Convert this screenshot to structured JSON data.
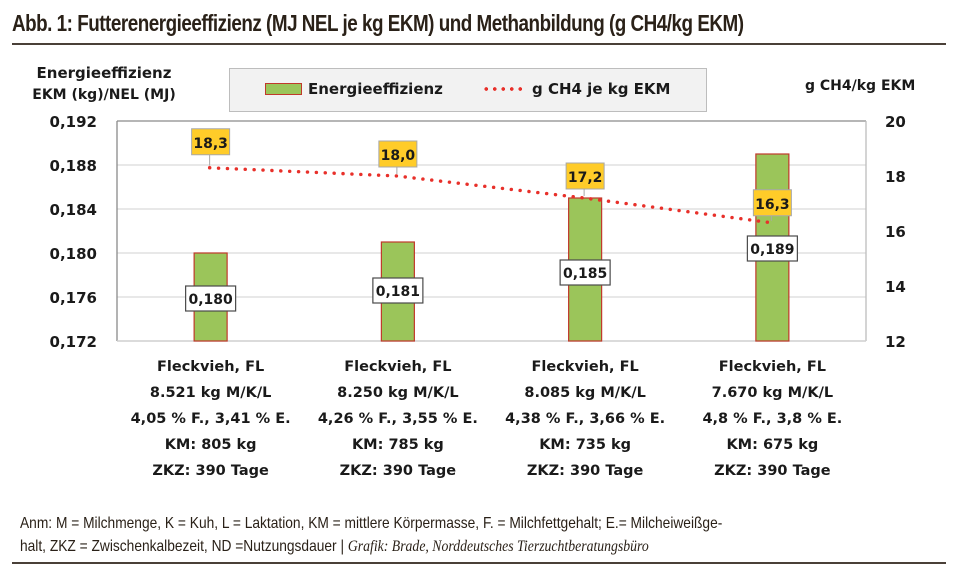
{
  "figure": {
    "title": "Abb. 1: Futterenergieeffizienz (MJ NEL je kg EKM) und Methanbildung (g CH4/kg EKM)",
    "note_line1": "Anm: M = Milchmenge, K = Kuh, L = Laktation, KM = mittlere Körpermasse, F. = Milchfettgehalt; E.= Milcheiweißge-",
    "note_line2": "halt, ZKZ = Zwischenkalbezeit, ND =Nutzungsdauer",
    "note_separator": " | ",
    "credit": "Grafik: Brade, Norddeutsches Tierzuchtberatungsbüro"
  },
  "chart_data": {
    "type": "bar",
    "title": "Abb. 1: Futterenergieeffizienz (MJ NEL je kg EKM) und Methanbildung (g CH4/kg EKM)",
    "ylabel_left_line1": "Energieeffizienz",
    "ylabel_left_line2": "EKM (kg)/NEL (MJ)",
    "ylabel_right": "g CH4/kg EKM",
    "ylim_left": [
      0.172,
      0.192
    ],
    "ylim_right": [
      12,
      20
    ],
    "yticks_left": [
      "0,192",
      "0,188",
      "0,184",
      "0,180",
      "0,176",
      "0,172"
    ],
    "yticks_left_values": [
      0.192,
      0.188,
      0.184,
      0.18,
      0.176,
      0.172
    ],
    "yticks_right": [
      "20",
      "18",
      "16",
      "14",
      "12"
    ],
    "yticks_right_values": [
      20,
      18,
      16,
      14,
      12
    ],
    "grid": true,
    "legend_position": "top-center",
    "legend": [
      {
        "label": "Energieeffizienz",
        "kind": "bar"
      },
      {
        "label": "g CH4 je kg EKM",
        "kind": "dotted-line"
      }
    ],
    "categories": [
      [
        "Fleckvieh, FL",
        "8.521 kg M/K/L",
        "4,05 % F., 3,41 % E.",
        "KM: 805 kg",
        "ZKZ: 390 Tage"
      ],
      [
        "Fleckvieh, FL",
        "8.250 kg M/K/L",
        "4,26 % F., 3,55 % E.",
        "KM: 785 kg",
        "ZKZ: 390 Tage"
      ],
      [
        "Fleckvieh, FL",
        "8.085 kg M/K/L",
        "4,38 % F., 3,66 % E.",
        "KM: 735 kg",
        "ZKZ: 390 Tage"
      ],
      [
        "Fleckvieh, FL",
        "7.670 kg M/K/L",
        "4,8 % F., 3,8 % E.",
        "KM: 675 kg",
        "ZKZ: 390 Tage"
      ]
    ],
    "series": [
      {
        "name": "Energieeffizienz",
        "axis": "left",
        "type": "bar",
        "values": [
          0.18,
          0.181,
          0.185,
          0.189
        ],
        "labels": [
          "0,180",
          "0,181",
          "0,185",
          "0,189"
        ],
        "color": "#9bc55a",
        "edge_color": "#c0392b"
      },
      {
        "name": "g CH4 je kg EKM",
        "axis": "right",
        "type": "line",
        "style": "dotted",
        "values": [
          18.3,
          18.0,
          17.2,
          16.3
        ],
        "labels": [
          "18,3",
          "18,0",
          "17,2",
          "16,3"
        ],
        "color": "#e8302a",
        "label_bg": "#ffcc29"
      }
    ]
  }
}
